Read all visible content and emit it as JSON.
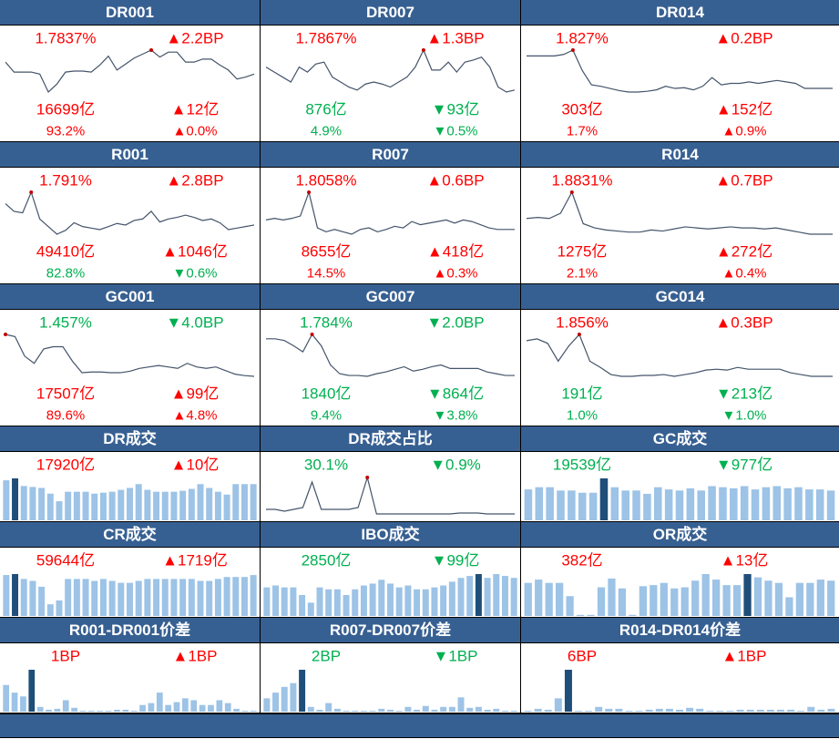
{
  "colors": {
    "header": "#376092",
    "up": "#ff0000",
    "down": "#00b050",
    "line": "#44546a",
    "bar": "#9dc3e6",
    "bar_highlight": "#1f4e79",
    "marker": "#c00000"
  },
  "panels": [
    {
      "title": "DR001",
      "type": "line",
      "rate": "1.7837%",
      "rate_dir": "up",
      "change": "2.2BP",
      "change_dir": "up",
      "volume": "16699亿",
      "volume_dir": "up",
      "volume_change": "12亿",
      "volume_change_dir": "up",
      "share": "93.2%",
      "share_dir": "up",
      "share_change": "0.0%",
      "share_change_dir": "up",
      "series": [
        60,
        50,
        50,
        50,
        48,
        30,
        38,
        50,
        51,
        51,
        50,
        57,
        66,
        52,
        58,
        64,
        68,
        72,
        65,
        70,
        70,
        60,
        60,
        63,
        63,
        57,
        52,
        43,
        45,
        48
      ],
      "marker": 17
    },
    {
      "title": "DR007",
      "type": "line",
      "rate": "1.7867%",
      "rate_dir": "up",
      "change": "1.3BP",
      "change_dir": "up",
      "volume": "876亿",
      "volume_dir": "down",
      "volume_change": "93亿",
      "volume_change_dir": "down",
      "share": "4.9%",
      "share_dir": "down",
      "share_change": "0.5%",
      "share_change_dir": "down",
      "series": [
        55,
        50,
        45,
        40,
        55,
        50,
        58,
        60,
        45,
        40,
        35,
        32,
        38,
        40,
        38,
        35,
        40,
        45,
        55,
        72,
        52,
        52,
        60,
        50,
        60,
        62,
        65,
        55,
        35,
        30,
        32
      ],
      "marker": 19
    },
    {
      "title": "DR014",
      "type": "line",
      "rate": "1.827%",
      "rate_dir": "up",
      "change": "0.2BP",
      "change_dir": "up",
      "volume": "303亿",
      "volume_dir": "up",
      "volume_change": "152亿",
      "volume_change_dir": "up",
      "share": "1.7%",
      "share_dir": "up",
      "share_change": "0.9%",
      "share_change_dir": "up",
      "series": [
        80,
        80,
        80,
        80,
        82,
        88,
        60,
        40,
        38,
        35,
        32,
        30,
        30,
        31,
        33,
        38,
        35,
        36,
        33,
        38,
        50,
        40,
        42,
        42,
        44,
        42,
        44,
        46,
        44,
        42,
        35,
        35,
        35,
        35
      ],
      "marker": 5
    },
    {
      "title": "R001",
      "type": "line",
      "rate": "1.791%",
      "rate_dir": "up",
      "change": "2.8BP",
      "change_dir": "up",
      "volume": "49410亿",
      "volume_dir": "up",
      "volume_change": "1046亿",
      "volume_change_dir": "up",
      "share": "82.8%",
      "share_dir": "down",
      "share_change": "0.6%",
      "share_change_dir": "down",
      "series": [
        70,
        60,
        58,
        85,
        50,
        40,
        30,
        35,
        45,
        40,
        38,
        36,
        40,
        44,
        42,
        48,
        50,
        60,
        46,
        50,
        52,
        55,
        52,
        48,
        50,
        45,
        36,
        38,
        40,
        42
      ],
      "marker": 3
    },
    {
      "title": "R007",
      "type": "line",
      "rate": "1.8058%",
      "rate_dir": "up",
      "change": "0.6BP",
      "change_dir": "up",
      "volume": "8655亿",
      "volume_dir": "up",
      "volume_change": "418亿",
      "volume_change_dir": "up",
      "share": "14.5%",
      "share_dir": "up",
      "share_change": "0.3%",
      "share_change_dir": "up",
      "series": [
        50,
        52,
        50,
        52,
        55,
        85,
        40,
        35,
        38,
        35,
        32,
        38,
        40,
        35,
        38,
        42,
        40,
        48,
        44,
        46,
        48,
        50,
        46,
        50,
        48,
        44,
        40,
        38,
        38,
        38
      ],
      "marker": 5
    },
    {
      "title": "R014",
      "type": "line",
      "rate": "1.8831%",
      "rate_dir": "up",
      "change": "0.7BP",
      "change_dir": "up",
      "volume": "1275亿",
      "volume_dir": "up",
      "volume_change": "272亿",
      "volume_change_dir": "up",
      "share": "2.1%",
      "share_dir": "up",
      "share_change": "0.4%",
      "share_change_dir": "up",
      "series": [
        45,
        46,
        45,
        50,
        70,
        40,
        36,
        34,
        33,
        32,
        32,
        34,
        33,
        35,
        37,
        36,
        35,
        36,
        37,
        36,
        36,
        35,
        36,
        34,
        32,
        30,
        30,
        30
      ],
      "marker": 4
    },
    {
      "title": "GC001",
      "type": "line",
      "rate": "1.457%",
      "rate_dir": "down",
      "change": "4.0BP",
      "change_dir": "down",
      "volume": "17507亿",
      "volume_dir": "up",
      "volume_change": "99亿",
      "volume_change_dir": "up",
      "share": "89.6%",
      "share_dir": "up",
      "share_change": "4.8%",
      "share_change_dir": "up",
      "series": [
        85,
        82,
        55,
        45,
        65,
        68,
        68,
        48,
        32,
        33,
        33,
        32,
        32,
        34,
        38,
        40,
        42,
        40,
        38,
        45,
        40,
        38,
        40,
        35,
        30,
        28,
        27
      ],
      "marker": 0
    },
    {
      "title": "GC007",
      "type": "line",
      "rate": "1.784%",
      "rate_dir": "down",
      "change": "2.0BP",
      "change_dir": "down",
      "volume": "1840亿",
      "volume_dir": "down",
      "volume_change": "864亿",
      "volume_change_dir": "down",
      "share": "9.4%",
      "share_dir": "down",
      "share_change": "3.8%",
      "share_change_dir": "down",
      "series": [
        70,
        70,
        68,
        62,
        55,
        75,
        62,
        40,
        30,
        28,
        28,
        27,
        30,
        32,
        35,
        38,
        33,
        35,
        38,
        40,
        36,
        36,
        36,
        36,
        32,
        30,
        28,
        28
      ],
      "marker": 5
    },
    {
      "title": "GC014",
      "type": "line",
      "rate": "1.856%",
      "rate_dir": "up",
      "change": "0.3BP",
      "change_dir": "up",
      "volume": "191亿",
      "volume_dir": "down",
      "volume_change": "213亿",
      "volume_change_dir": "down",
      "share": "1.0%",
      "share_dir": "down",
      "share_change": "1.0%",
      "share_change_dir": "down",
      "series": [
        68,
        70,
        65,
        45,
        62,
        75,
        45,
        38,
        30,
        28,
        28,
        29,
        29,
        30,
        28,
        30,
        32,
        35,
        36,
        35,
        38,
        36,
        36,
        36,
        36,
        32,
        30,
        28,
        28,
        28
      ],
      "marker": 5
    },
    {
      "title": "DR成交",
      "type": "bar",
      "value": "17920亿",
      "value_dir": "up",
      "change": "10亿",
      "change_dir": "up",
      "series": [
        42,
        44,
        36,
        35,
        34,
        28,
        20,
        30,
        30,
        30,
        28,
        29,
        30,
        32,
        34,
        38,
        32,
        30,
        30,
        30,
        31,
        33,
        38,
        34,
        30,
        27,
        38,
        38,
        38
      ],
      "highlight": 1
    },
    {
      "title": "DR成交占比",
      "type": "line_small",
      "value": "30.1%",
      "value_dir": "down",
      "change": "0.9%",
      "change_dir": "down",
      "series": [
        10,
        10,
        8,
        10,
        12,
        40,
        10,
        10,
        10,
        10,
        12,
        45,
        5,
        5,
        5,
        5,
        5,
        5,
        5,
        5,
        5,
        6,
        6,
        6,
        5,
        5,
        5,
        5
      ],
      "marker": 11
    },
    {
      "title": "GC成交",
      "type": "bar",
      "value": "19539亿",
      "value_dir": "down",
      "change": "977亿",
      "change_dir": "down",
      "series": [
        28,
        30,
        30,
        27,
        27,
        25,
        25,
        38,
        30,
        27,
        27,
        24,
        30,
        28,
        27,
        29,
        27,
        31,
        30,
        29,
        31,
        28,
        30,
        31,
        29,
        30,
        28,
        28,
        27
      ],
      "highlight": 7
    },
    {
      "title": "CR成交",
      "type": "bar",
      "value": "59644亿",
      "value_dir": "up",
      "change": "1719亿",
      "change_dir": "up",
      "series": [
        42,
        43,
        38,
        36,
        30,
        12,
        16,
        38,
        38,
        38,
        36,
        38,
        36,
        34,
        34,
        36,
        38,
        38,
        38,
        38,
        38,
        38,
        36,
        36,
        38,
        40,
        40,
        40,
        42
      ],
      "highlight": 1
    },
    {
      "title": "IBO成交",
      "type": "bar",
      "value": "2850亿",
      "value_dir": "down",
      "change": "99亿",
      "change_dir": "down",
      "series": [
        30,
        32,
        30,
        30,
        22,
        14,
        30,
        28,
        28,
        22,
        28,
        32,
        34,
        38,
        34,
        30,
        32,
        28,
        28,
        30,
        32,
        36,
        40,
        42,
        44,
        40,
        44,
        42,
        40
      ],
      "highlight": 24
    },
    {
      "title": "OR成交",
      "type": "bar",
      "value": "382亿",
      "value_dir": "up",
      "change": "13亿",
      "change_dir": "up",
      "series": [
        30,
        33,
        30,
        30,
        18,
        1,
        1,
        26,
        34,
        25,
        1,
        27,
        28,
        30,
        25,
        26,
        32,
        38,
        33,
        28,
        28,
        38,
        35,
        32,
        30,
        17,
        30,
        30,
        33,
        32
      ],
      "highlight": 21
    },
    {
      "title": "R001-DR001价差",
      "type": "bar",
      "value": "1BP",
      "value_dir": "up",
      "change": "1BP",
      "change_dir": "up",
      "series": [
        28,
        20,
        16,
        44,
        5,
        2,
        3,
        12,
        4,
        0,
        0,
        0,
        0,
        2,
        2,
        1,
        7,
        9,
        20,
        7,
        10,
        14,
        12,
        7,
        7,
        12,
        9,
        3,
        0,
        1
      ],
      "highlight": 3
    },
    {
      "title": "R007-DR007价差",
      "type": "bar",
      "value": "2BP",
      "value_dir": "down",
      "change": "1BP",
      "change_dir": "down",
      "series": [
        14,
        20,
        26,
        30,
        44,
        5,
        2,
        9,
        3,
        1,
        1,
        0,
        1,
        3,
        2,
        0,
        5,
        2,
        6,
        2,
        5,
        5,
        15,
        4,
        5,
        2,
        3,
        1,
        1
      ],
      "highlight": 4
    },
    {
      "title": "R014-DR014价差",
      "type": "bar",
      "value": "6BP",
      "value_dir": "up",
      "change": "1BP",
      "change_dir": "up",
      "series": [
        1,
        3,
        2,
        14,
        44,
        0,
        0,
        5,
        3,
        3,
        0,
        0,
        2,
        3,
        3,
        2,
        4,
        3,
        1,
        0,
        0,
        2,
        2,
        2,
        2,
        2,
        2,
        0,
        5,
        2,
        3
      ],
      "highlight": 4
    }
  ]
}
